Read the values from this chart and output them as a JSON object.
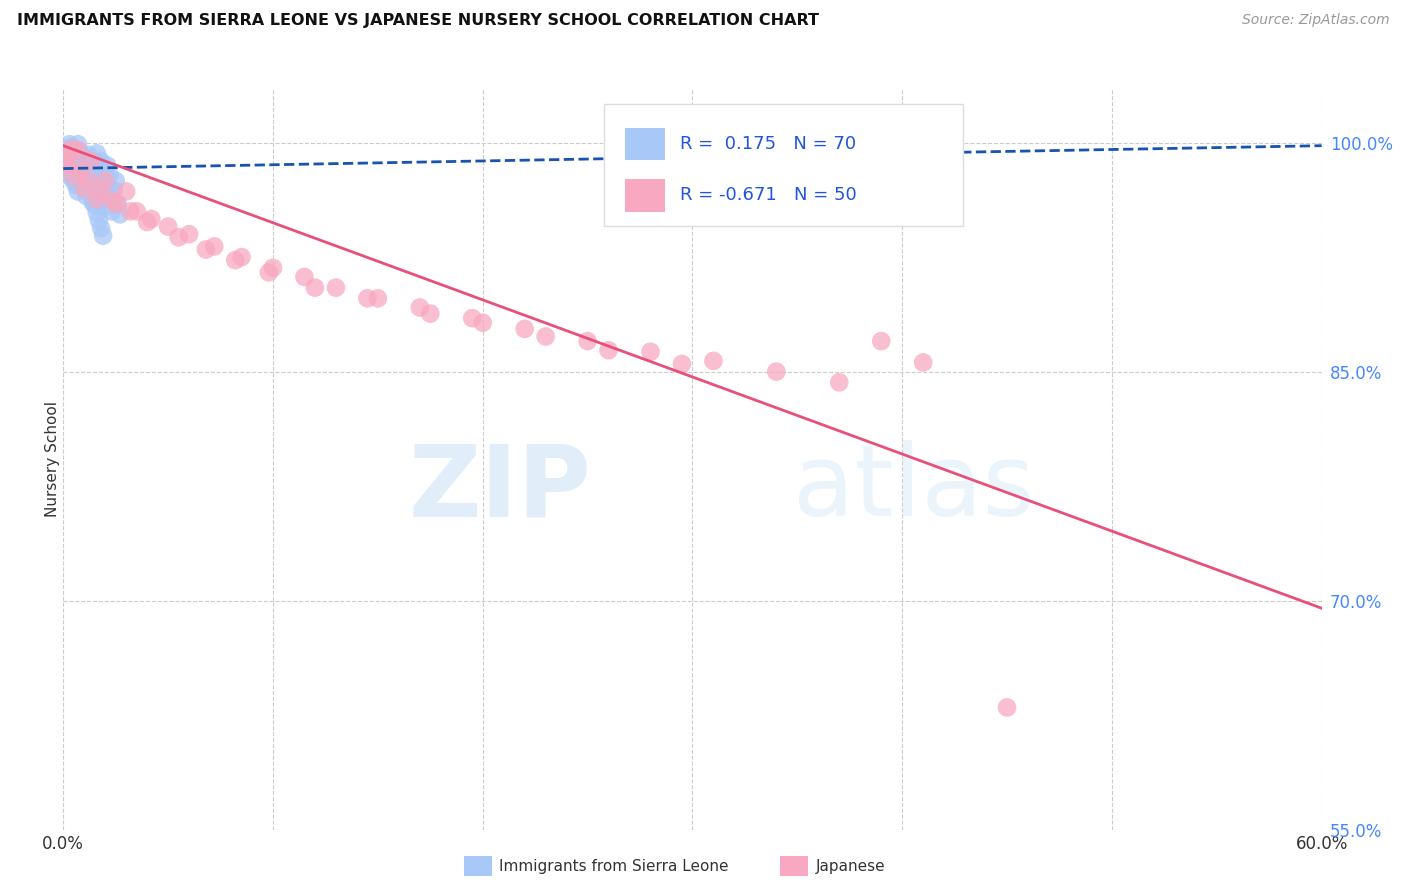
{
  "title": "IMMIGRANTS FROM SIERRA LEONE VS JAPANESE NURSERY SCHOOL CORRELATION CHART",
  "source": "Source: ZipAtlas.com",
  "ylabel": "Nursery School",
  "xmin": 0.0,
  "xmax": 0.6,
  "ymin": 0.585,
  "ymax": 1.035,
  "xtick_labels": [
    "0.0%",
    "",
    "",
    "",
    "",
    "",
    "60.0%"
  ],
  "xtick_vals": [
    0.0,
    0.1,
    0.2,
    0.3,
    0.4,
    0.5,
    0.6
  ],
  "ytick_labels": [
    "100.0%",
    "85.0%",
    "70.0%",
    "55.0%"
  ],
  "ytick_vals": [
    1.0,
    0.85,
    0.7,
    0.55
  ],
  "grid_color": "#cccccc",
  "background_color": "#ffffff",
  "sierra_leone_color": "#a8c8f8",
  "japanese_color": "#f8a8c0",
  "sierra_leone_line_color": "#1a52b0",
  "japanese_line_color": "#e8507a",
  "R_sierra_leone": 0.175,
  "N_sierra_leone": 70,
  "R_japanese": -0.671,
  "N_japanese": 50,
  "legend_label_1": "Immigrants from Sierra Leone",
  "legend_label_2": "Japanese",
  "watermark_zip": "ZIP",
  "watermark_atlas": "atlas",
  "sierra_leone_x": [
    0.0,
    0.001,
    0.001,
    0.002,
    0.002,
    0.003,
    0.003,
    0.004,
    0.004,
    0.005,
    0.005,
    0.006,
    0.006,
    0.007,
    0.007,
    0.008,
    0.008,
    0.009,
    0.009,
    0.01,
    0.01,
    0.011,
    0.011,
    0.012,
    0.012,
    0.013,
    0.013,
    0.014,
    0.014,
    0.015,
    0.015,
    0.016,
    0.016,
    0.017,
    0.017,
    0.018,
    0.018,
    0.019,
    0.019,
    0.02,
    0.02,
    0.021,
    0.021,
    0.022,
    0.022,
    0.023,
    0.024,
    0.025,
    0.026,
    0.027,
    0.0,
    0.001,
    0.002,
    0.003,
    0.004,
    0.005,
    0.006,
    0.007,
    0.008,
    0.009,
    0.01,
    0.011,
    0.012,
    0.013,
    0.014,
    0.015,
    0.016,
    0.017,
    0.018,
    0.019
  ],
  "sierra_leone_y": [
    0.985,
    0.988,
    0.992,
    0.981,
    0.995,
    0.978,
    0.99,
    0.983,
    0.997,
    0.975,
    0.988,
    0.972,
    0.993,
    0.98,
    0.968,
    0.985,
    0.975,
    0.991,
    0.977,
    0.97,
    0.983,
    0.988,
    0.965,
    0.978,
    0.992,
    0.975,
    0.969,
    0.982,
    0.961,
    0.988,
    0.973,
    0.979,
    0.993,
    0.967,
    0.984,
    0.971,
    0.988,
    0.963,
    0.976,
    0.98,
    0.958,
    0.972,
    0.985,
    0.966,
    0.979,
    0.955,
    0.969,
    0.975,
    0.96,
    0.953,
    0.996,
    0.991,
    0.986,
    0.999,
    0.994,
    0.989,
    0.984,
    0.999,
    0.994,
    0.989,
    0.984,
    0.979,
    0.974,
    0.969,
    0.964,
    0.959,
    0.954,
    0.949,
    0.944,
    0.939
  ],
  "japanese_x": [
    0.001,
    0.003,
    0.005,
    0.007,
    0.01,
    0.013,
    0.016,
    0.02,
    0.025,
    0.03,
    0.035,
    0.042,
    0.05,
    0.06,
    0.072,
    0.085,
    0.1,
    0.115,
    0.13,
    0.15,
    0.17,
    0.195,
    0.22,
    0.25,
    0.28,
    0.31,
    0.34,
    0.37,
    0.39,
    0.41,
    0.002,
    0.004,
    0.008,
    0.012,
    0.018,
    0.024,
    0.032,
    0.04,
    0.055,
    0.068,
    0.082,
    0.098,
    0.12,
    0.145,
    0.175,
    0.2,
    0.23,
    0.26,
    0.295,
    0.45
  ],
  "japanese_y": [
    0.985,
    0.992,
    0.978,
    0.995,
    0.97,
    0.988,
    0.963,
    0.975,
    0.96,
    0.968,
    0.955,
    0.95,
    0.945,
    0.94,
    0.932,
    0.925,
    0.918,
    0.912,
    0.905,
    0.898,
    0.892,
    0.885,
    0.878,
    0.87,
    0.863,
    0.857,
    0.85,
    0.843,
    0.87,
    0.856,
    0.99,
    0.996,
    0.982,
    0.975,
    0.968,
    0.962,
    0.955,
    0.948,
    0.938,
    0.93,
    0.923,
    0.915,
    0.905,
    0.898,
    0.888,
    0.882,
    0.873,
    0.864,
    0.855,
    0.63
  ],
  "sl_line_x": [
    0.0,
    0.6
  ],
  "sl_line_y": [
    0.983,
    0.998
  ],
  "jp_line_x": [
    0.0,
    0.6
  ],
  "jp_line_y": [
    0.998,
    0.695
  ]
}
